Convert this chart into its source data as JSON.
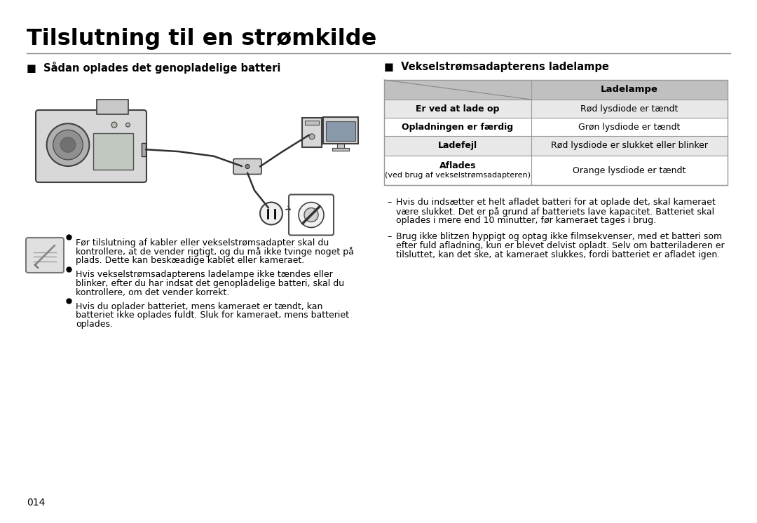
{
  "title": "Tilslutning til en strømkilde",
  "left_heading": "■  Sådan oplades det genopladelige batteri",
  "right_heading": "■  Vekselstrømsadapterens ladelampe",
  "table_header_col2": "Ladelampe",
  "table_rows": [
    {
      "col1": "Er ved at lade op",
      "col2": "Rød lysdiode er tændt"
    },
    {
      "col1": "Opladningen er færdig",
      "col2": "Grøn lysdiode er tændt"
    },
    {
      "col1": "Ladefejl",
      "col2": "Rød lysdiode er slukket eller blinker"
    },
    {
      "col1": "Aflades\n(ved brug af vekselstrømsadapteren)",
      "col2": "Orange lysdiode er tændt"
    }
  ],
  "bullets_left": [
    [
      "Før tilslutning af kabler eller vekselstrømsadapter skal du",
      "kontrollere, at de vender rigtigt, og du må ikke tvinge noget på",
      "plads. Dette kan beskæadige kablet eller kameraet."
    ],
    [
      "Hvis vekselstrømsadapterens ladelampe ikke tændes eller",
      "blinker, efter du har indsat det genopladelige batteri, skal du",
      "kontrollere, om det vender korrekt."
    ],
    [
      "Hvis du oplader batteriet, mens kameraet er tændt, kan",
      "batteriet ikke oplades fuldt. Sluk for kameraet, mens batteriet",
      "oplades."
    ]
  ],
  "bullets_right": [
    [
      "– ",
      "Hvis du indsætter et helt afladet batteri for at oplade det, skal kameraet",
      "  være slukket. Det er på grund af batteriets lave kapacitet. Batteriet skal",
      "  oplades i mere end 10 minutter, før kameraet tages i brug."
    ],
    [
      "– ",
      "Brug ikke blitzen hyppigt og optag ikke filmsekvenser, med et batteri som",
      "  efter fuld afladning, kun er blevet delvist opladt. Selv om batteriladeren er",
      "  tilsluttet, kan det ske, at kameraet slukkes, fordi batteriet er afladet igen."
    ]
  ],
  "page_number": "014",
  "bg_color": "#ffffff",
  "title_color": "#000000",
  "table_header_bg": "#c0c0c0",
  "table_row_bg_even": "#e8e8e8",
  "table_row_bg_odd": "#ffffff",
  "table_border_color": "#999999",
  "separator_color": "#888888"
}
